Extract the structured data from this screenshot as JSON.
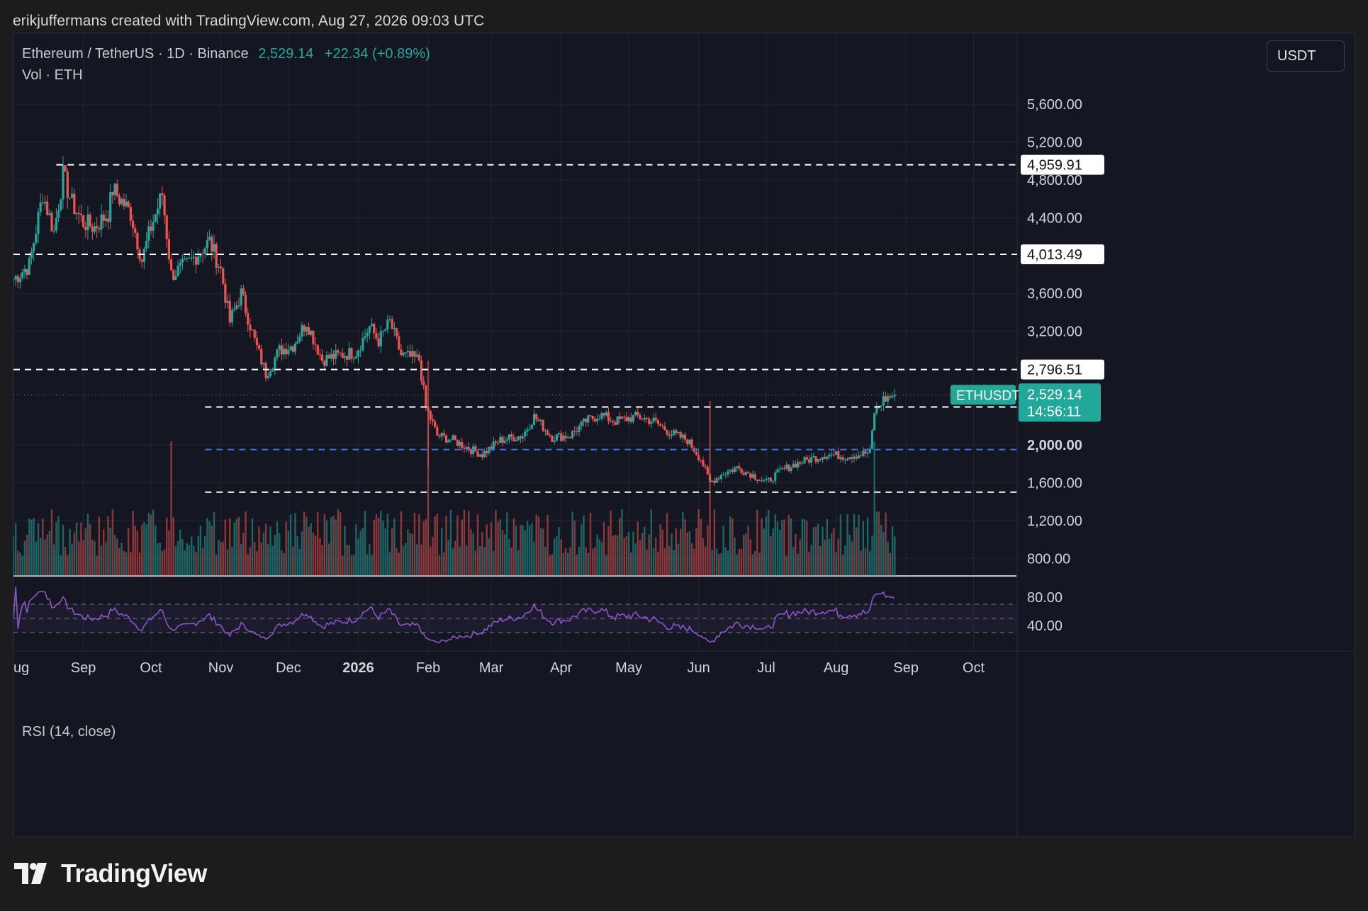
{
  "attribution": "erikjuffermans created with TradingView.com, Aug 27, 2026 09:03 UTC",
  "legend": {
    "symbol": "Ethereum / TetherUS · 1D · Binance",
    "price": "2,529.14",
    "change": "+22.34 (+0.89%)",
    "volume_label": "Vol · ETH"
  },
  "currency_button": "USDT",
  "rsi_label": "RSI (14, close)",
  "brand": "TradingView",
  "colors": {
    "up": "#26a69a",
    "down": "#ef5350",
    "rsi": "#8e54c9",
    "blue_level": "#3a6df0",
    "badge": "#22a79b"
  },
  "chart_data": {
    "type": "candlestick",
    "interval": "1D",
    "x_range": [
      "2025-08-01",
      "2026-10-20"
    ],
    "y_range": [
      600,
      5900
    ],
    "y_ticks": [
      800,
      1200,
      1600,
      2000,
      3200,
      3600,
      4400,
      4800,
      5200,
      5600
    ],
    "y_tick_labels": [
      "800.00",
      "1,200.00",
      "1,600.00",
      "2,000.00",
      "3,200.00",
      "3,600.00",
      "4,400.00",
      "4,800.00",
      "5,200.00",
      "5,600.00"
    ],
    "x_ticks": [
      {
        "date": "2025-08-01",
        "label": "ug"
      },
      {
        "date": "2025-09-01",
        "label": "Sep"
      },
      {
        "date": "2025-10-01",
        "label": "Oct"
      },
      {
        "date": "2025-11-01",
        "label": "Nov"
      },
      {
        "date": "2025-12-01",
        "label": "Dec"
      },
      {
        "date": "2026-01-01",
        "label": "2026"
      },
      {
        "date": "2026-02-01",
        "label": "Feb"
      },
      {
        "date": "2026-03-01",
        "label": "Mar"
      },
      {
        "date": "2026-04-01",
        "label": "Apr"
      },
      {
        "date": "2026-05-01",
        "label": "May"
      },
      {
        "date": "2026-06-01",
        "label": "Jun"
      },
      {
        "date": "2026-07-01",
        "label": "Jul"
      },
      {
        "date": "2026-08-01",
        "label": "Aug"
      },
      {
        "date": "2026-09-01",
        "label": "Sep"
      },
      {
        "date": "2026-10-01",
        "label": "Oct"
      }
    ],
    "price_path": [
      [
        "2025-08-01",
        3750
      ],
      [
        "2025-08-08",
        3900
      ],
      [
        "2025-08-14",
        4650
      ],
      [
        "2025-08-19",
        4250
      ],
      [
        "2025-08-23",
        4850
      ],
      [
        "2025-08-27",
        4550
      ],
      [
        "2025-09-01",
        4350
      ],
      [
        "2025-09-06",
        4300
      ],
      [
        "2025-09-12",
        4450
      ],
      [
        "2025-09-14",
        4700
      ],
      [
        "2025-09-22",
        4450
      ],
      [
        "2025-09-27",
        3950
      ],
      [
        "2025-10-01",
        4300
      ],
      [
        "2025-10-06",
        4650
      ],
      [
        "2025-10-10",
        3800
      ],
      [
        "2025-10-17",
        3900
      ],
      [
        "2025-10-27",
        4150
      ],
      [
        "2025-11-01",
        3850
      ],
      [
        "2025-11-05",
        3300
      ],
      [
        "2025-11-10",
        3600
      ],
      [
        "2025-11-16",
        3100
      ],
      [
        "2025-11-21",
        2750
      ],
      [
        "2025-11-27",
        3000
      ],
      [
        "2025-12-03",
        3050
      ],
      [
        "2025-12-09",
        3300
      ],
      [
        "2025-12-16",
        2900
      ],
      [
        "2025-12-24",
        2950
      ],
      [
        "2025-12-31",
        2980
      ],
      [
        "2026-01-06",
        3250
      ],
      [
        "2026-01-10",
        3100
      ],
      [
        "2026-01-15",
        3300
      ],
      [
        "2026-01-20",
        2950
      ],
      [
        "2026-01-28",
        2900
      ],
      [
        "2026-01-31",
        2400
      ],
      [
        "2026-02-05",
        2100
      ],
      [
        "2026-02-12",
        2050
      ],
      [
        "2026-02-20",
        1950
      ],
      [
        "2026-02-25",
        1900
      ],
      [
        "2026-03-05",
        2050
      ],
      [
        "2026-03-15",
        2100
      ],
      [
        "2026-03-20",
        2300
      ],
      [
        "2026-03-28",
        2080
      ],
      [
        "2026-04-05",
        2100
      ],
      [
        "2026-04-12",
        2250
      ],
      [
        "2026-04-18",
        2320
      ],
      [
        "2026-04-25",
        2250
      ],
      [
        "2026-05-05",
        2300
      ],
      [
        "2026-05-12",
        2250
      ],
      [
        "2026-05-20",
        2120
      ],
      [
        "2026-05-27",
        2050
      ],
      [
        "2026-06-02",
        1850
      ],
      [
        "2026-06-06",
        1600
      ],
      [
        "2026-06-12",
        1700
      ],
      [
        "2026-06-18",
        1760
      ],
      [
        "2026-06-25",
        1680
      ],
      [
        "2026-07-01",
        1600
      ],
      [
        "2026-07-07",
        1720
      ],
      [
        "2026-07-14",
        1800
      ],
      [
        "2026-07-22",
        1860
      ],
      [
        "2026-07-28",
        1900
      ],
      [
        "2026-08-05",
        1880
      ],
      [
        "2026-08-12",
        1900
      ],
      [
        "2026-08-16",
        1920
      ],
      [
        "2026-08-18",
        2350
      ],
      [
        "2026-08-22",
        2480
      ],
      [
        "2026-08-27",
        2529
      ]
    ],
    "levels": [
      {
        "value": 4959.91,
        "label": "4,959.91",
        "from": "2025-08-20",
        "style": "white-dashed"
      },
      {
        "value": 4013.49,
        "label": "4,013.49",
        "from": "2025-08-01",
        "style": "white-dashed"
      },
      {
        "value": 2796.51,
        "label": "2,796.51",
        "from": "2025-08-01",
        "style": "white-dashed"
      },
      {
        "value": 2400.0,
        "label": "",
        "from": "2025-10-25",
        "style": "white-dashed"
      },
      {
        "value": 1950.0,
        "label": "",
        "from": "2025-10-25",
        "style": "blue-dashed"
      },
      {
        "value": 1500.0,
        "label": "",
        "from": "2025-10-25",
        "style": "white-dashed"
      }
    ],
    "bold_tick_label": "2,000.00",
    "current": {
      "symbol": "ETHUSDT",
      "price": "2,529.14",
      "countdown": "14:56:11"
    },
    "rsi": {
      "y_ticks": [
        80,
        40
      ],
      "tick_labels": [
        "80.00",
        "40.00"
      ],
      "band": [
        30,
        70
      ],
      "last": 78
    }
  }
}
